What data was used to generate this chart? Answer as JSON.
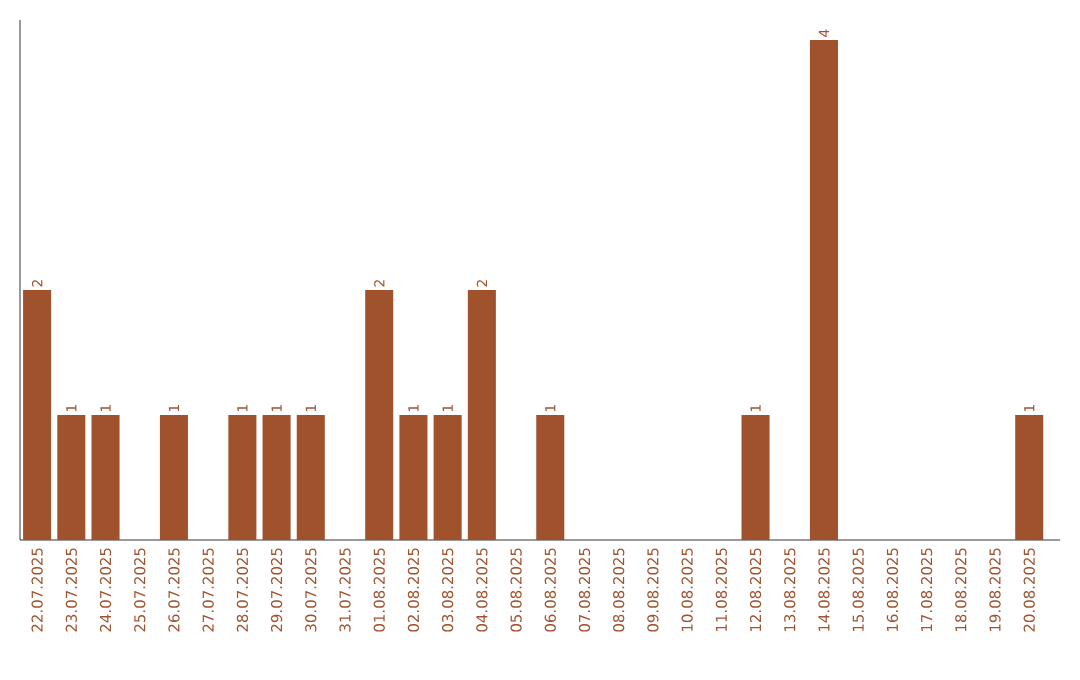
{
  "chart_data": {
    "type": "bar",
    "categories": [
      "22.07.2025",
      "23.07.2025",
      "24.07.2025",
      "25.07.2025",
      "26.07.2025",
      "27.07.2025",
      "28.07.2025",
      "29.07.2025",
      "30.07.2025",
      "31.07.2025",
      "01.08.2025",
      "02.08.2025",
      "03.08.2025",
      "04.08.2025",
      "05.08.2025",
      "06.08.2025",
      "07.08.2025",
      "08.08.2025",
      "09.08.2025",
      "10.08.2025",
      "11.08.2025",
      "12.08.2025",
      "13.08.2025",
      "14.08.2025",
      "15.08.2025",
      "16.08.2025",
      "17.08.2025",
      "18.08.2025",
      "19.08.2025",
      "20.08.2025"
    ],
    "values": [
      2,
      1,
      1,
      0,
      1,
      0,
      1,
      1,
      1,
      0,
      2,
      1,
      1,
      2,
      0,
      1,
      0,
      0,
      0,
      0,
      0,
      1,
      0,
      4,
      0,
      0,
      0,
      0,
      0,
      1
    ],
    "value_labels": [
      "2",
      "1",
      "1",
      null,
      "1",
      null,
      "1",
      "1",
      "1",
      null,
      "2",
      "1",
      "1",
      "2",
      null,
      "1",
      null,
      null,
      null,
      null,
      null,
      "1",
      null,
      "4",
      null,
      null,
      null,
      null,
      null,
      "1"
    ],
    "color": "#a0522d"
  }
}
